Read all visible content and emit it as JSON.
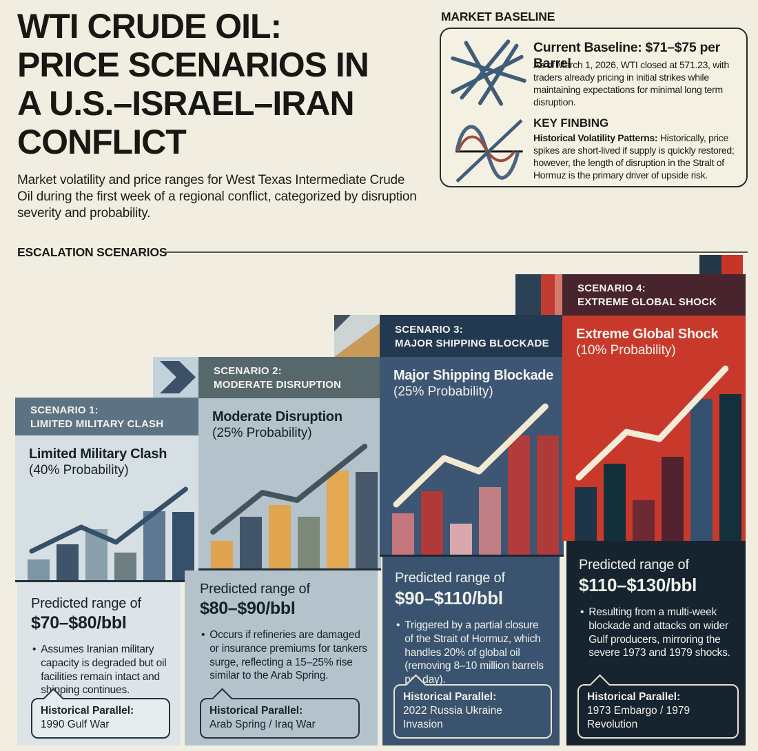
{
  "page": {
    "title_lines": [
      "WTI CRUDE OIL:",
      "PRICE SCENARIOS IN",
      "A U.S.–ISRAEL–IRAN",
      "CONFLICT"
    ],
    "subtitle": "Market volatility and price ranges for West Texas Intermediate Crude Oil during the first week of a regional conflict, categorized by disruption severity and probability.",
    "section_header": "ESCALATION SCENARIOS"
  },
  "market_baseline": {
    "label": "MARKET BASELINE",
    "current_heading": "Current Baseline: $71–$75 per Barrel",
    "current_body": "As of March 1, 2026, WTI closed at 571.23, with traders already pricing in initial strikes while maintaining expectations for minimal long term disruption.",
    "finding_heading": "KEY FINBING",
    "finding_lead": "Historical Volatility Patterns:",
    "finding_body": " Historically, price spikes are short-lived if supply is quickly restored; however, the length of disruption in the Stralt of Hormuz is the primary driver of upside risk."
  },
  "scenarios": [
    {
      "tag_line1": "SCENARIO 1:",
      "tag_line2": "LIMITED MILITARY CLASH",
      "name": "Limited Military Clash",
      "probability": "(40% Probability)",
      "range_label": "Predicted range of",
      "range_value": "$70–$80/bbl",
      "bullet": "Assumes Iranian military capacity is degraded but oil facilities remain intact and shipping continues.",
      "parallel_label": "Historical Parallel:",
      "parallel_value": "1990 Gulf War"
    },
    {
      "tag_line1": "SCENARIO 2:",
      "tag_line2": "MODERATE DISRUPTION",
      "name": "Moderate Disruption",
      "probability": "(25% Probability)",
      "range_label": "Predicted range of",
      "range_value": "$80–$90/bbl",
      "bullet": "Occurs if refineries are damaged or insurance premiums for tankers surge, reflecting a 15–25% rise similar to the Arab Spring.",
      "parallel_label": "Historical Parallel:",
      "parallel_value": "Arab Spring / Iraq War"
    },
    {
      "tag_line1": "SCENARIO 3:",
      "tag_line2": "MAJOR SHIPPING BLOCKADE",
      "name": "Major Shipping Blockade",
      "probability": "(25% Probability)",
      "range_label": "Predicted range of",
      "range_value": "$90–$110/bbl",
      "bullet": "Triggered by a partial closure of the Strait of Hormuz, which handles 20% of global oil (removing 8–10 million barrels per day).",
      "parallel_label": "Historical Parallel:",
      "parallel_value": "2022 Russia Ukraine Invasion"
    },
    {
      "tag_line1": "SCENARIO 4:",
      "tag_line2": "EXTREME GLOBAL SHOCK",
      "name": "Extreme Global Shock",
      "probability": "(10% Probability)",
      "range_label": "Predicted range of",
      "range_value": "$110–$130/bbl",
      "bullet": "Resulting from a multi-week blockade and attacks on wider Gulf producers, mirroring the severe 1973 and 1979 shocks.",
      "parallel_label": "Historical Parallel:",
      "parallel_value": "1973 Embargo / 1979 Revolution"
    }
  ],
  "chart_data": [
    {
      "type": "bar",
      "title": "Limited Military Clash (40% Probability)",
      "note": "decorative mini bar chart with rising trend line; no axes; heights are relative units",
      "categories": [
        "b1",
        "b2",
        "b3",
        "b4",
        "b5",
        "b6"
      ],
      "values": [
        30,
        52,
        74,
        40,
        100,
        99
      ],
      "bar_colors": [
        "#7e96a4",
        "#3f5468",
        "#8ba0ad",
        "#6d7f83",
        "#5d7890",
        "#37506a"
      ],
      "line": {
        "color": "#36506a",
        "width": 7,
        "points": [
          [
            0.09,
            42
          ],
          [
            0.36,
            77
          ],
          [
            0.55,
            55
          ],
          [
            0.93,
            132
          ]
        ]
      },
      "predicted_range_usd_bbl": [
        70,
        80
      ],
      "probability_pct": 40
    },
    {
      "type": "bar",
      "title": "Moderate Disruption (25% Probability)",
      "note": "decorative mini bar chart with rising trend line; no axes; heights are relative units",
      "categories": [
        "b1",
        "b2",
        "b3",
        "b4",
        "b5",
        "b6"
      ],
      "values": [
        40,
        75,
        92,
        75,
        142,
        140
      ],
      "bar_colors": [
        "#dfa44d",
        "#42566b",
        "#e0a54e",
        "#7c8878",
        "#e2a950",
        "#46586a"
      ],
      "line": {
        "color": "#42545e",
        "width": 8,
        "points": [
          [
            0.08,
            53
          ],
          [
            0.35,
            110
          ],
          [
            0.54,
            99
          ],
          [
            0.91,
            177
          ]
        ]
      },
      "predicted_range_usd_bbl": [
        80,
        90
      ],
      "probability_pct": 25
    },
    {
      "type": "bar",
      "title": "Major Shipping Blockade (25% Probability)",
      "note": "decorative mini bar chart with rising trend line; no axes; heights are relative units",
      "categories": [
        "b1",
        "b2",
        "b3",
        "b4",
        "b5",
        "b6"
      ],
      "values": [
        60,
        92,
        45,
        98,
        173,
        173
      ],
      "bar_colors": [
        "#c4777c",
        "#b03a3a",
        "#d8a8ac",
        "#c07f85",
        "#b23c3c",
        "#ae3a3a"
      ],
      "line": {
        "color": "#f1e9d2",
        "width": 9,
        "points": [
          [
            0.09,
            73
          ],
          [
            0.35,
            140
          ],
          [
            0.54,
            121
          ],
          [
            0.9,
            215
          ]
        ]
      },
      "predicted_range_usd_bbl": [
        90,
        110
      ],
      "probability_pct": 25
    },
    {
      "type": "bar",
      "title": "Extreme Global Shock (10% Probability)",
      "note": "decorative mini bar chart with rising trend line; no axes; heights are relative units",
      "categories": [
        "b1",
        "b2",
        "b3",
        "b4",
        "b5",
        "b6"
      ],
      "values": [
        78,
        112,
        59,
        122,
        206,
        213
      ],
      "bar_colors": [
        "#1e3449",
        "#132f3a",
        "#6e2a33",
        "#52222e",
        "#33516f",
        "#13303c"
      ],
      "line": {
        "color": "#f3ecd8",
        "width": 9,
        "points": [
          [
            0.09,
            92
          ],
          [
            0.35,
            158
          ],
          [
            0.53,
            148
          ],
          [
            0.89,
            250
          ]
        ]
      },
      "predicted_range_usd_bbl": [
        110,
        130
      ],
      "probability_pct": 10
    }
  ]
}
